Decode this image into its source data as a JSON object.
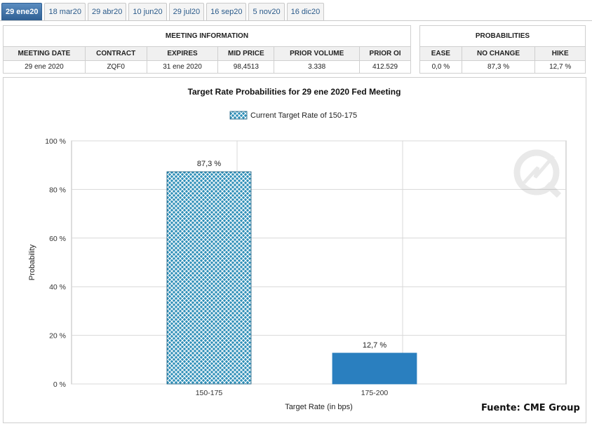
{
  "tabs": [
    "29 ene20",
    "18 mar20",
    "29 abr20",
    "10 jun20",
    "29 jul20",
    "16 sep20",
    "5 nov20",
    "16 dic20"
  ],
  "active_tab": 0,
  "meeting": {
    "caption": "MEETING INFORMATION",
    "headers": [
      "MEETING DATE",
      "CONTRACT",
      "EXPIRES",
      "MID PRICE",
      "PRIOR VOLUME",
      "PRIOR OI"
    ],
    "row": [
      "29 ene 2020",
      "ZQF0",
      "31 ene 2020",
      "98,4513",
      "3.338",
      "412.529"
    ]
  },
  "probabilities": {
    "caption": "PROBABILITIES",
    "headers": [
      "EASE",
      "NO CHANGE",
      "HIKE"
    ],
    "row": [
      "0,0 %",
      "87,3 %",
      "12,7 %"
    ]
  },
  "chart_data": {
    "type": "bar",
    "title": "Target Rate Probabilities for 29 ene 2020 Fed Meeting",
    "legend": "Current Target Rate of 150-175",
    "legend_position": "top-center",
    "categories": [
      "150-175",
      "175-200"
    ],
    "values": [
      87.3,
      12.7
    ],
    "value_labels": [
      "87,3 %",
      "12,7 %"
    ],
    "current_category": "150-175",
    "xlabel": "Target Rate (in bps)",
    "ylabel": "Probability",
    "ylim": [
      0,
      100
    ],
    "yticks": [
      0,
      20,
      40,
      60,
      80,
      100
    ],
    "ytick_labels": [
      "0 %",
      "20 %",
      "40 %",
      "60 %",
      "80 %",
      "100 %"
    ],
    "grid": true,
    "colors": {
      "current": "#2f8fb8",
      "other": "#2a7fbf",
      "hatch": "#ffffff"
    }
  },
  "source": "Fuente: CME Group"
}
